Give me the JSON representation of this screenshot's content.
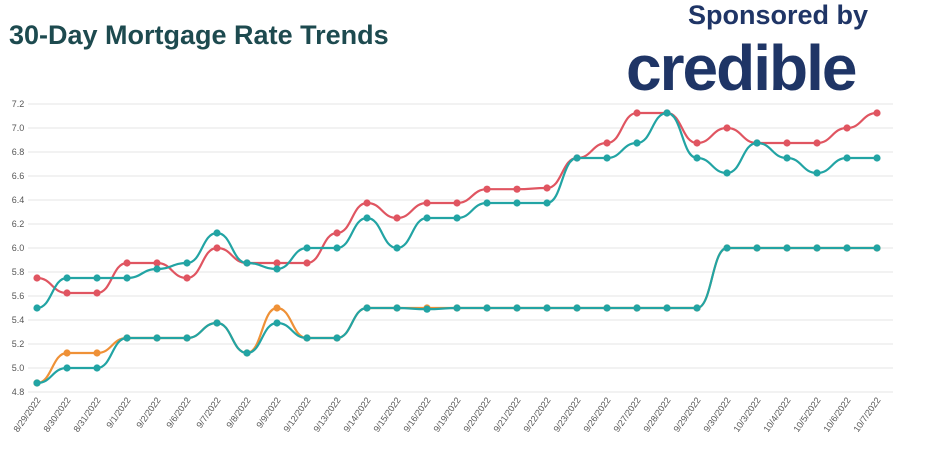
{
  "header": {
    "title": "30-Day Mortgage Rate Trends",
    "sponsor_label": "Sponsored by",
    "brand": "credible"
  },
  "colors": {
    "title": "#1d4a4f",
    "brand": "#1f3566",
    "grid": "#e6e6e6",
    "axis_text": "#555555"
  },
  "chart_data": {
    "type": "line",
    "title": "30-Day Mortgage Rate Trends",
    "xlabel": "",
    "ylabel": "",
    "ylim": [
      4.8,
      7.2
    ],
    "yticks": [
      "4.8",
      "5.0",
      "5.2",
      "5.4",
      "5.6",
      "5.8",
      "6.0",
      "6.2",
      "6.4",
      "6.6",
      "6.8",
      "7.0",
      "7.2"
    ],
    "ytick_values": [
      4.8,
      5.0,
      5.2,
      5.4,
      5.6,
      5.8,
      6.0,
      6.2,
      6.4,
      6.6,
      6.8,
      7.0,
      7.2
    ],
    "grid": true,
    "categories": [
      "8/29/2022",
      "8/30/2022",
      "8/31/2022",
      "9/1/2022",
      "9/2/2022",
      "9/6/2022",
      "9/7/2022",
      "9/8/2022",
      "9/9/2022",
      "9/12/2022",
      "9/13/2022",
      "9/14/2022",
      "9/15/2022",
      "9/16/2022",
      "9/19/2022",
      "9/20/2022",
      "9/21/2022",
      "9/22/2022",
      "9/23/2022",
      "9/26/2022",
      "9/27/2022",
      "9/28/2022",
      "9/29/2022",
      "9/30/2022",
      "10/3/2022",
      "10/4/2022",
      "10/5/2022",
      "10/6/2022",
      "10/7/2022"
    ],
    "series": [
      {
        "color": "#e05561",
        "values": [
          5.75,
          5.625,
          5.625,
          5.875,
          5.875,
          5.75,
          6.0,
          5.875,
          5.875,
          5.875,
          6.125,
          6.375,
          6.25,
          6.375,
          6.375,
          6.49,
          6.49,
          6.5,
          6.75,
          6.875,
          7.125,
          7.125,
          6.875,
          7.0,
          6.875,
          6.875,
          6.875,
          7.0,
          7.125
        ]
      },
      {
        "color": "#22a4a4",
        "values": [
          5.5,
          5.75,
          5.75,
          5.75,
          5.825,
          5.875,
          6.125,
          5.875,
          5.825,
          6.0,
          6.0,
          6.25,
          6.0,
          6.25,
          6.25,
          6.375,
          6.375,
          6.375,
          6.75,
          6.75,
          6.875,
          7.125,
          6.75,
          6.625,
          6.875,
          6.75,
          6.625,
          6.75,
          6.75
        ]
      },
      {
        "color": "#ef9137",
        "values": [
          4.875,
          5.125,
          5.125,
          5.25,
          5.25,
          5.25,
          5.375,
          5.125,
          5.5,
          5.25,
          5.25,
          5.5,
          5.5,
          5.5,
          5.5,
          5.5,
          5.5,
          5.5,
          5.5,
          5.5,
          5.5,
          5.5,
          5.5,
          6.0,
          6.0,
          6.0,
          6.0,
          6.0,
          6.0
        ]
      },
      {
        "color": "#22a4a4",
        "values": [
          4.875,
          5.0,
          5.0,
          5.25,
          5.25,
          5.25,
          5.375,
          5.125,
          5.375,
          5.25,
          5.25,
          5.5,
          5.5,
          5.49,
          5.5,
          5.5,
          5.5,
          5.5,
          5.5,
          5.5,
          5.5,
          5.5,
          5.5,
          6.0,
          6.0,
          6.0,
          6.0,
          6.0,
          6.0
        ]
      }
    ]
  }
}
